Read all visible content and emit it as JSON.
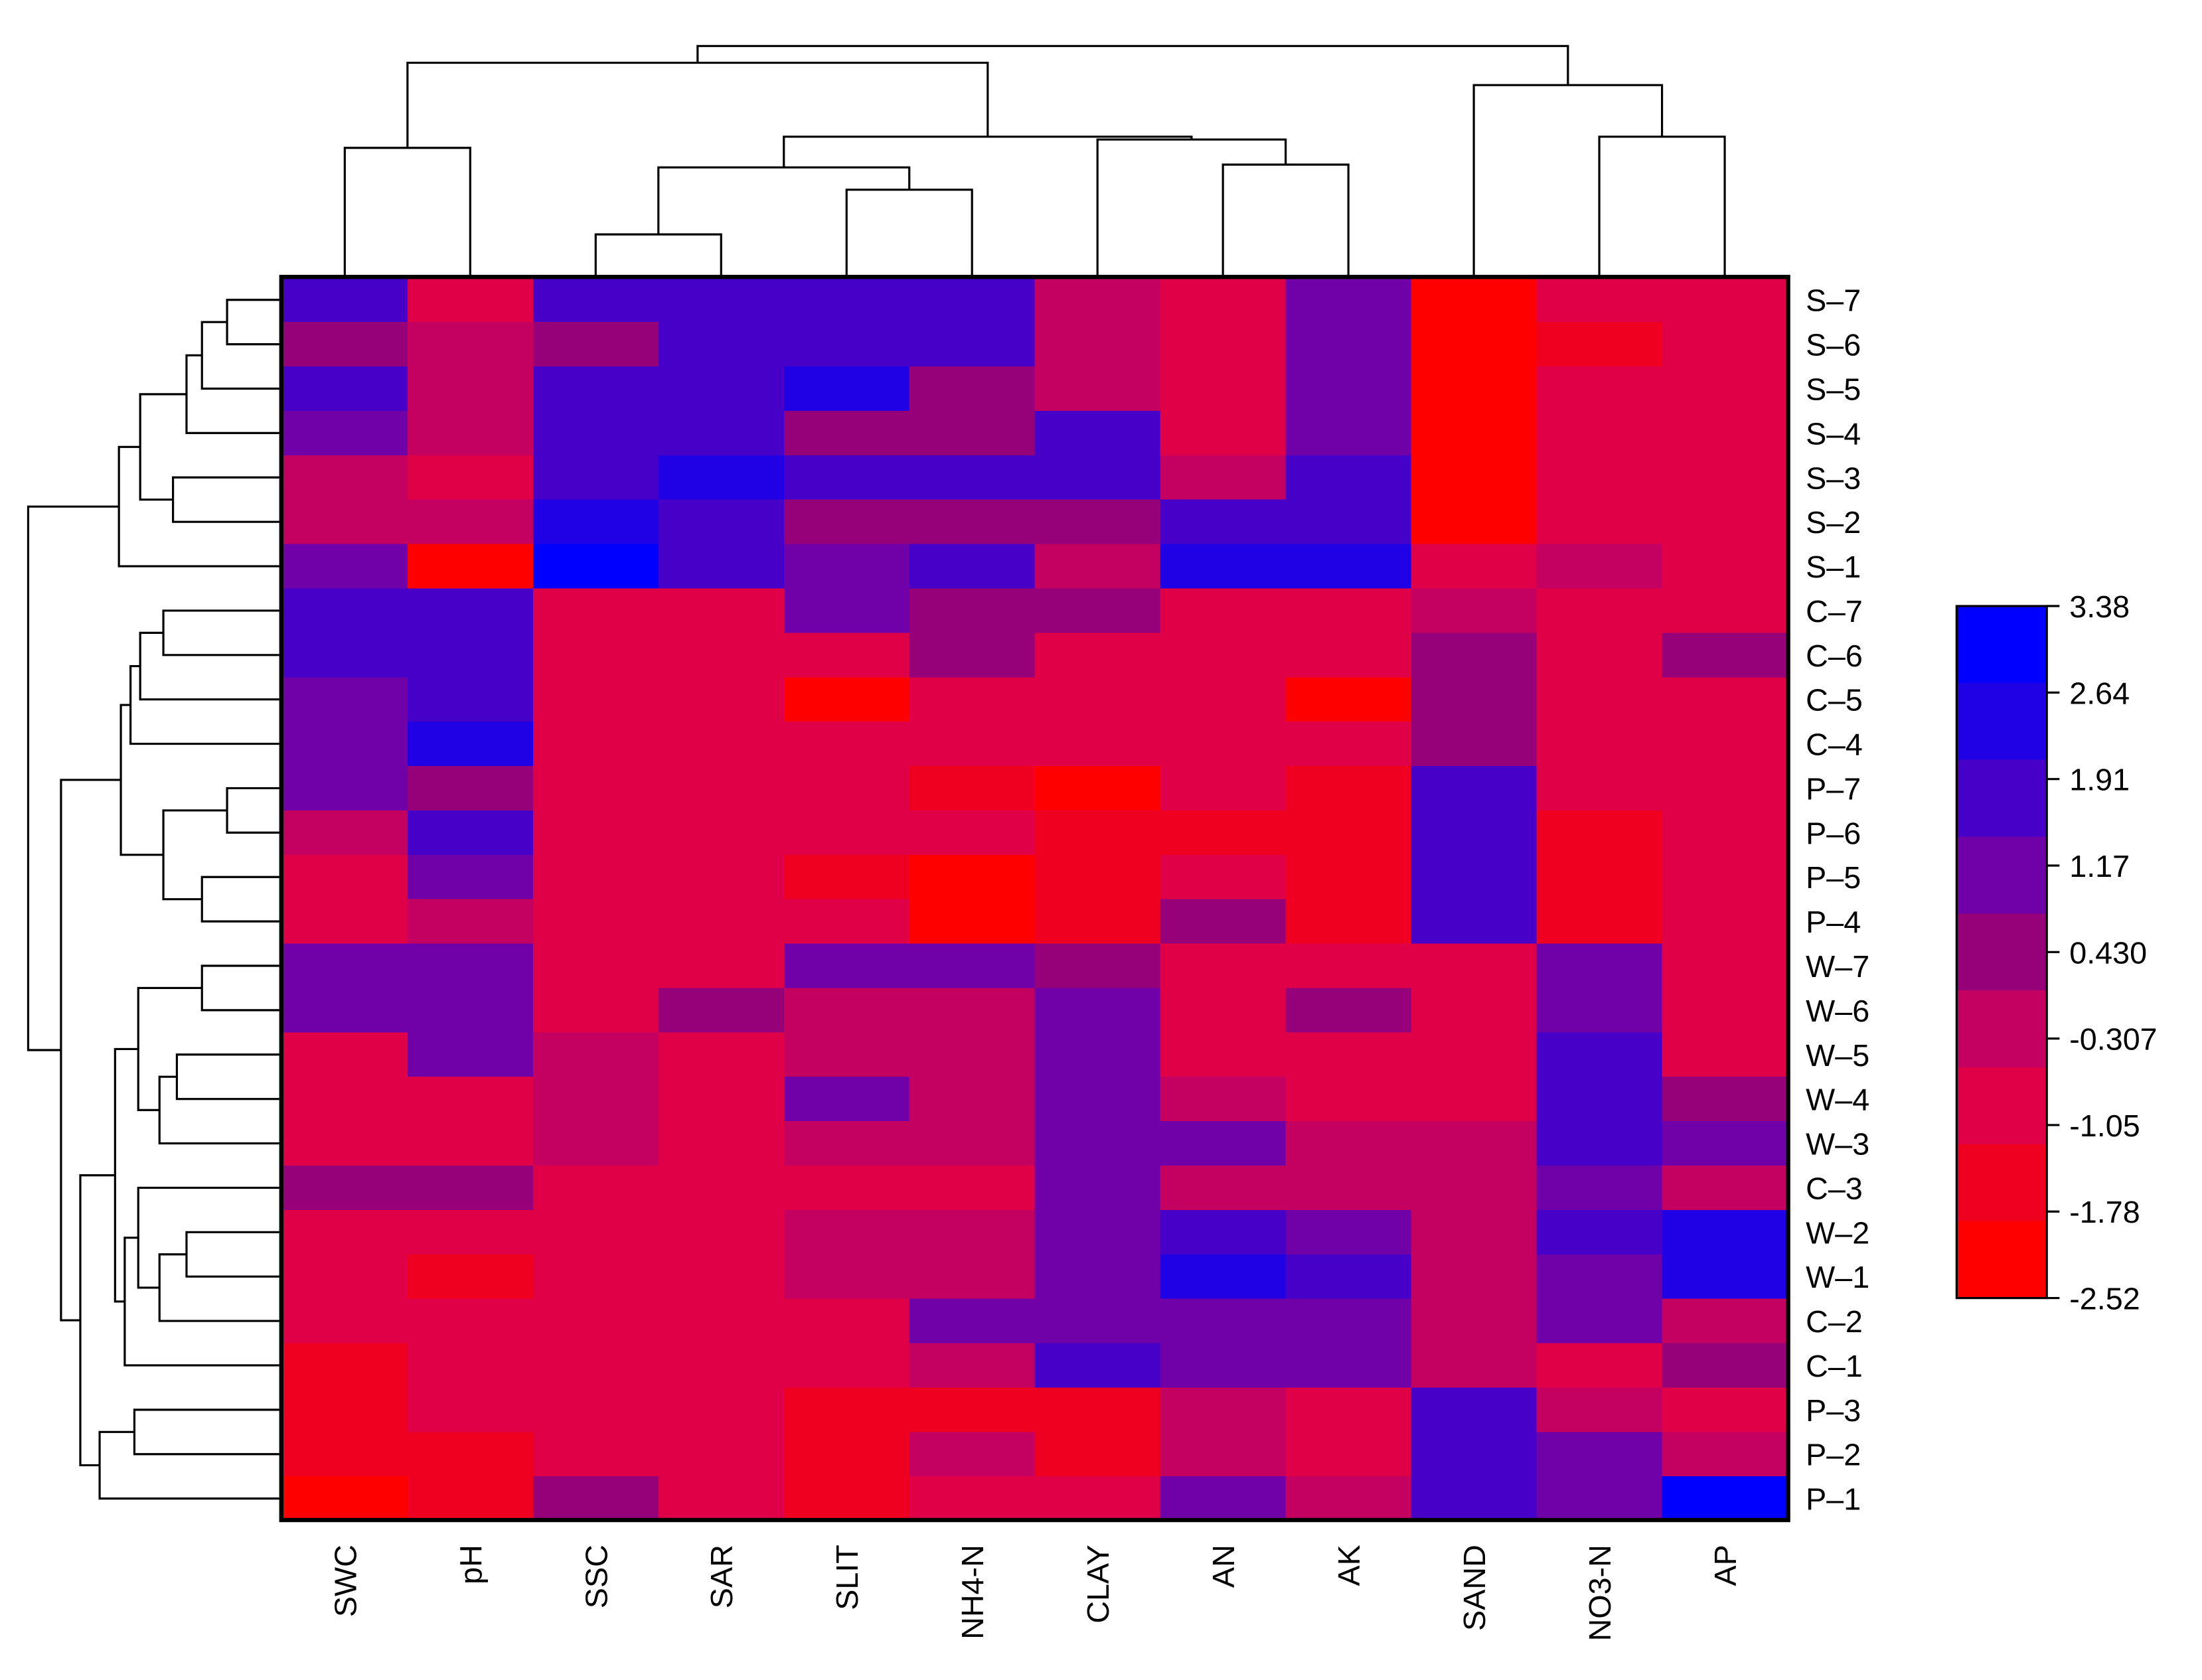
{
  "chart_data": {
    "type": "heatmap",
    "columns": [
      "SWC",
      "pH",
      "SSC",
      "SAR",
      "SLIT",
      "NH4-N",
      "CLAY",
      "AN",
      "AK",
      "SAND",
      "NO3-N",
      "AP"
    ],
    "rows": [
      "S–7",
      "S–6",
      "S–5",
      "S–4",
      "S–3",
      "S–2",
      "S–1",
      "C–7",
      "C–6",
      "C–5",
      "C–4",
      "P–7",
      "P–6",
      "P–5",
      "P–4",
      "W–7",
      "W–6",
      "W–5",
      "W–4",
      "W–3",
      "C–3",
      "W–2",
      "W–1",
      "C–2",
      "C–1",
      "P–3",
      "P–2",
      "P–1"
    ],
    "values": [
      [
        1.5,
        -1.0,
        1.5,
        1.5,
        1.5,
        1.5,
        0.0,
        -0.7,
        0.8,
        -2.5,
        -0.7,
        -0.7
      ],
      [
        0.4,
        -0.3,
        0.4,
        1.5,
        1.5,
        1.5,
        0.0,
        -0.7,
        0.8,
        -2.5,
        -1.5,
        -0.7
      ],
      [
        1.5,
        -0.3,
        1.5,
        1.5,
        2.5,
        0.6,
        0.0,
        -0.7,
        0.8,
        -2.5,
        -0.7,
        -0.7
      ],
      [
        0.8,
        -0.3,
        1.5,
        1.5,
        0.4,
        0.4,
        1.7,
        -0.7,
        0.8,
        -2.5,
        -0.7,
        -0.7
      ],
      [
        -0.3,
        -1.0,
        1.5,
        2.3,
        1.5,
        1.5,
        1.5,
        -0.1,
        1.5,
        -2.5,
        -0.7,
        -0.7
      ],
      [
        -0.3,
        -0.3,
        2.2,
        1.7,
        0.6,
        0.6,
        0.6,
        1.5,
        1.5,
        -2.5,
        -0.7,
        -0.7
      ],
      [
        0.8,
        -2.3,
        3.4,
        1.7,
        0.8,
        1.5,
        -0.3,
        2.4,
        2.4,
        -0.7,
        0.0,
        -0.7
      ],
      [
        1.5,
        1.5,
        -0.7,
        -0.7,
        1.0,
        0.2,
        0.2,
        -0.7,
        -0.7,
        0.0,
        -0.7,
        -0.7
      ],
      [
        1.5,
        1.5,
        -0.7,
        -0.7,
        -1.0,
        0.2,
        -0.7,
        -0.7,
        -0.7,
        0.6,
        -0.7,
        0.3
      ],
      [
        0.8,
        1.5,
        -0.7,
        -0.7,
        -2.0,
        -0.7,
        -0.7,
        -0.7,
        -2.0,
        0.6,
        -0.7,
        -0.7
      ],
      [
        0.8,
        2.4,
        -0.7,
        -0.7,
        -0.7,
        -0.7,
        -0.7,
        -0.7,
        -0.7,
        0.2,
        -0.7,
        -0.7
      ],
      [
        0.8,
        0.5,
        -0.7,
        -0.7,
        -0.7,
        -1.8,
        -2.5,
        -0.7,
        -1.8,
        1.7,
        -0.7,
        -0.7
      ],
      [
        -0.2,
        1.7,
        -0.7,
        -0.7,
        -0.7,
        -0.7,
        -1.8,
        -1.8,
        -1.8,
        1.7,
        -1.8,
        -0.7
      ],
      [
        -0.7,
        0.8,
        -0.7,
        -0.7,
        -1.8,
        -2.5,
        -1.8,
        -0.7,
        -1.8,
        1.7,
        -1.8,
        -0.7
      ],
      [
        -0.7,
        0.0,
        -0.7,
        -0.7,
        -1.0,
        -2.5,
        -1.8,
        0.2,
        -1.8,
        1.7,
        -1.8,
        -0.7
      ],
      [
        1.1,
        1.1,
        -0.7,
        -0.7,
        1.1,
        1.1,
        0.2,
        -0.7,
        -0.7,
        -0.7,
        0.8,
        -0.7
      ],
      [
        1.1,
        1.1,
        -0.7,
        0.2,
        0.0,
        0.0,
        1.1,
        -0.7,
        0.2,
        -0.7,
        0.8,
        -0.7
      ],
      [
        -0.7,
        1.1,
        0.0,
        -0.7,
        0.0,
        0.0,
        1.1,
        -0.7,
        -0.7,
        -0.7,
        1.8,
        -0.7
      ],
      [
        -0.7,
        -0.7,
        0.0,
        -0.7,
        1.4,
        0.0,
        1.1,
        0.0,
        -0.7,
        -0.7,
        1.8,
        0.2
      ],
      [
        -0.7,
        -0.7,
        0.0,
        -0.7,
        0.0,
        0.0,
        1.1,
        1.1,
        0.0,
        0.0,
        1.8,
        0.8
      ],
      [
        0.2,
        0.2,
        -0.7,
        -0.7,
        -0.7,
        -1.0,
        1.1,
        -0.3,
        -0.3,
        -0.3,
        0.8,
        -0.3
      ],
      [
        -0.7,
        -0.7,
        -0.7,
        -0.7,
        0.0,
        0.0,
        1.1,
        1.5,
        0.8,
        -0.3,
        1.5,
        2.6
      ],
      [
        -0.7,
        -1.8,
        -0.7,
        -0.7,
        0.0,
        0.0,
        1.1,
        2.6,
        1.5,
        -0.3,
        0.8,
        2.6
      ],
      [
        -0.7,
        -0.7,
        -0.7,
        -0.7,
        -0.7,
        1.1,
        0.8,
        0.8,
        0.8,
        -0.3,
        0.8,
        -0.3
      ],
      [
        -1.8,
        -0.7,
        -0.7,
        -0.7,
        -0.7,
        0.0,
        1.7,
        0.8,
        0.8,
        -0.3,
        -0.7,
        0.6
      ],
      [
        -1.8,
        -0.7,
        -0.7,
        -0.7,
        -1.8,
        -1.8,
        -1.8,
        0.0,
        -0.7,
        1.7,
        -0.3,
        -1.0
      ],
      [
        -1.8,
        -1.8,
        -0.7,
        -0.7,
        -1.8,
        0.0,
        -1.8,
        0.0,
        -0.7,
        1.7,
        0.8,
        0.0
      ],
      [
        -2.5,
        -1.8,
        0.2,
        -0.7,
        -1.8,
        -0.7,
        -0.7,
        1.1,
        0.0,
        1.7,
        0.8,
        3.4
      ]
    ],
    "legend": {
      "tick_labels": [
        "3.38",
        "2.64",
        "1.91",
        "1.17",
        "0.430",
        "-0.307",
        "-1.05",
        "-1.78",
        "-2.52"
      ],
      "colors_top_to_bottom": [
        "#0000ff",
        "#2000e4",
        "#4600c8",
        "#7000a8",
        "#960078",
        "#c40060",
        "#e00048",
        "#f00020",
        "#ff0000"
      ],
      "range": [
        -2.52,
        3.38
      ],
      "placement": "right"
    },
    "column_dendrogram": {
      "merges": [
        [
          0,
          1,
          0.92
        ],
        [
          2,
          3,
          0.3
        ],
        [
          4,
          5,
          0.62
        ],
        [
          -2,
          -3,
          0.78
        ],
        [
          7,
          8,
          0.8
        ],
        [
          6,
          -5,
          0.98
        ],
        [
          -4,
          -6,
          1.0
        ],
        [
          10,
          11,
          1.0
        ],
        [
          9,
          -8,
          1.37
        ],
        [
          -1,
          -7,
          1.53
        ],
        [
          -10,
          -9,
          1.65
        ]
      ]
    },
    "row_dendrogram": {
      "merges": [
        [
          0,
          1,
          0.27
        ],
        [
          -1,
          2,
          0.4
        ],
        [
          -2,
          3,
          0.48
        ],
        [
          4,
          5,
          0.55
        ],
        [
          -3,
          -4,
          0.72
        ],
        [
          -5,
          6,
          0.83
        ],
        [
          7,
          8,
          0.6
        ],
        [
          -7,
          9,
          0.72
        ],
        [
          -8,
          10,
          0.77
        ],
        [
          11,
          12,
          0.27
        ],
        [
          13,
          14,
          0.4
        ],
        [
          -10,
          -11,
          0.6
        ],
        [
          -9,
          -12,
          0.82
        ],
        [
          15,
          16,
          0.4
        ],
        [
          17,
          18,
          0.53
        ],
        [
          -15,
          19,
          0.62
        ],
        [
          -14,
          -16,
          0.73
        ],
        [
          21,
          22,
          0.48
        ],
        [
          -18,
          23,
          0.62
        ],
        [
          20,
          -19,
          0.73
        ],
        [
          -20,
          24,
          0.8
        ],
        [
          -17,
          -21,
          0.85
        ],
        [
          25,
          26,
          0.75
        ],
        [
          -23,
          27,
          0.93
        ],
        [
          -22,
          -24,
          1.03
        ],
        [
          -13,
          -25,
          1.13
        ],
        [
          -6,
          -26,
          1.3
        ]
      ]
    }
  }
}
